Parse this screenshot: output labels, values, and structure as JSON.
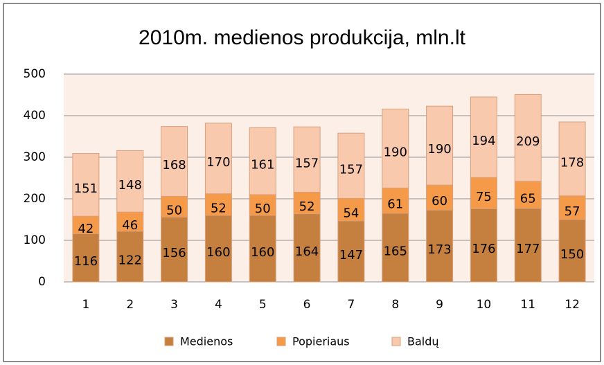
{
  "chart_data": {
    "type": "stacked_bar",
    "title": "2010m. medienos produkcija, mln.lt",
    "categories": [
      "1",
      "2",
      "3",
      "4",
      "5",
      "6",
      "7",
      "8",
      "9",
      "10",
      "11",
      "12"
    ],
    "series": [
      {
        "name": "Medienos",
        "color": "#c5803f",
        "values": [
          116,
          122,
          156,
          160,
          160,
          164,
          147,
          165,
          173,
          176,
          177,
          150
        ]
      },
      {
        "name": "Popieriaus",
        "color": "#f59a48",
        "values": [
          42,
          46,
          50,
          52,
          50,
          52,
          54,
          61,
          60,
          75,
          65,
          57
        ]
      },
      {
        "name": "Baldų",
        "color": "#f9c9ae",
        "values": [
          151,
          148,
          168,
          170,
          161,
          157,
          157,
          190,
          190,
          194,
          209,
          178
        ]
      }
    ],
    "ylim": [
      0,
      500
    ],
    "yticks": [
      0,
      100,
      200,
      300,
      400,
      500
    ],
    "grid": true,
    "legend": "bottom"
  }
}
